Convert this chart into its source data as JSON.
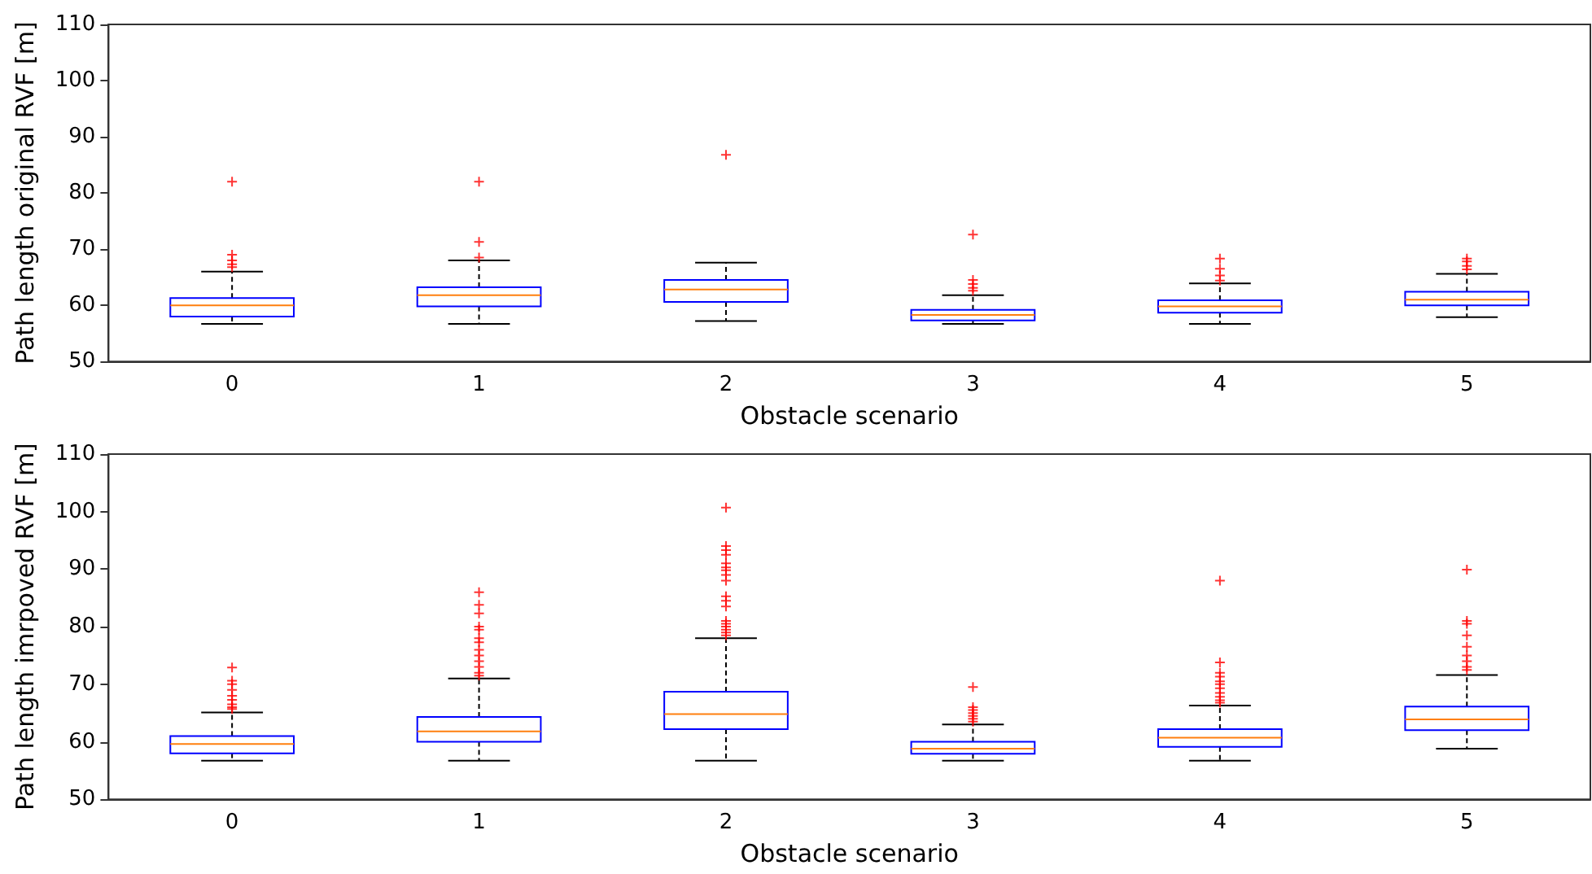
{
  "chart_data": [
    {
      "type": "box",
      "xlabel": "Obstacle scenario",
      "ylabel": "Path length original RVF [m]",
      "categories": [
        "0",
        "1",
        "2",
        "3",
        "4",
        "5"
      ],
      "ylim": [
        50,
        110
      ],
      "yticks": [
        50,
        60,
        70,
        80,
        90,
        100,
        110
      ],
      "color": "#0000ff",
      "boxes": [
        {
          "low": 56.7,
          "q1": 58,
          "median": 60,
          "q3": 61.3,
          "high": 66,
          "outliers": [
            82,
            69,
            68,
            67.3,
            66.8
          ]
        },
        {
          "low": 56.7,
          "q1": 59.8,
          "median": 61.8,
          "q3": 63.2,
          "high": 68,
          "outliers": [
            82,
            71.3,
            68.5
          ]
        },
        {
          "low": 57.2,
          "q1": 60.6,
          "median": 62.8,
          "q3": 64.5,
          "high": 67.6,
          "outliers": [
            86.8
          ]
        },
        {
          "low": 56.7,
          "q1": 57.3,
          "median": 58.3,
          "q3": 59.2,
          "high": 61.8,
          "outliers": [
            72.6,
            64.5,
            63.8,
            63.1,
            62.6
          ]
        },
        {
          "low": 56.7,
          "q1": 58.7,
          "median": 59.8,
          "q3": 60.9,
          "high": 63.9,
          "outliers": [
            68.3,
            66.5,
            65.3,
            64.4
          ]
        },
        {
          "low": 57.9,
          "q1": 60,
          "median": 61,
          "q3": 62.4,
          "high": 65.6,
          "outliers": [
            68.3,
            67.8,
            67,
            66.4
          ]
        }
      ]
    },
    {
      "type": "box",
      "xlabel": "Obstacle scenario",
      "ylabel": "Path length imrpoved RVF [m]",
      "categories": [
        "0",
        "1",
        "2",
        "3",
        "4",
        "5"
      ],
      "ylim": [
        50,
        110
      ],
      "yticks": [
        50,
        60,
        70,
        80,
        90,
        100,
        110
      ],
      "color": "#0000ff",
      "boxes": [
        {
          "low": 56.7,
          "q1": 58,
          "median": 59.6,
          "q3": 61,
          "high": 65.1,
          "outliers": [
            72.9,
            70.6,
            70,
            69,
            68,
            67.3,
            66.5,
            66,
            65.7
          ]
        },
        {
          "low": 56.7,
          "q1": 60,
          "median": 61.8,
          "q3": 64.3,
          "high": 71,
          "outliers": [
            86,
            83.8,
            82.3,
            80,
            79.5,
            78,
            77.3,
            76,
            75,
            74,
            73,
            72,
            71.5
          ]
        },
        {
          "low": 56.7,
          "q1": 62.2,
          "median": 64.8,
          "q3": 68.7,
          "high": 78,
          "outliers": [
            100.7,
            94,
            93.3,
            92.5,
            91,
            90.3,
            89.8,
            89,
            88,
            85.3,
            84.5,
            83.5,
            81,
            80.5,
            80,
            79.5,
            79,
            78.5
          ]
        },
        {
          "low": 56.7,
          "q1": 57.9,
          "median": 58.8,
          "q3": 60,
          "high": 63,
          "outliers": [
            69.5,
            66,
            65.5,
            65,
            64.5,
            64,
            63.5
          ]
        },
        {
          "low": 56.7,
          "q1": 59.1,
          "median": 60.7,
          "q3": 62.2,
          "high": 66.3,
          "outliers": [
            88,
            73.8,
            72,
            71.3,
            70.5,
            70,
            69.3,
            68.5,
            67.8,
            67.2,
            66.8
          ]
        },
        {
          "low": 58.8,
          "q1": 62,
          "median": 63.9,
          "q3": 66.1,
          "high": 71.6,
          "outliers": [
            89.9,
            81,
            80.5,
            78.5,
            76.5,
            75,
            74,
            73,
            72.5
          ]
        }
      ]
    }
  ]
}
